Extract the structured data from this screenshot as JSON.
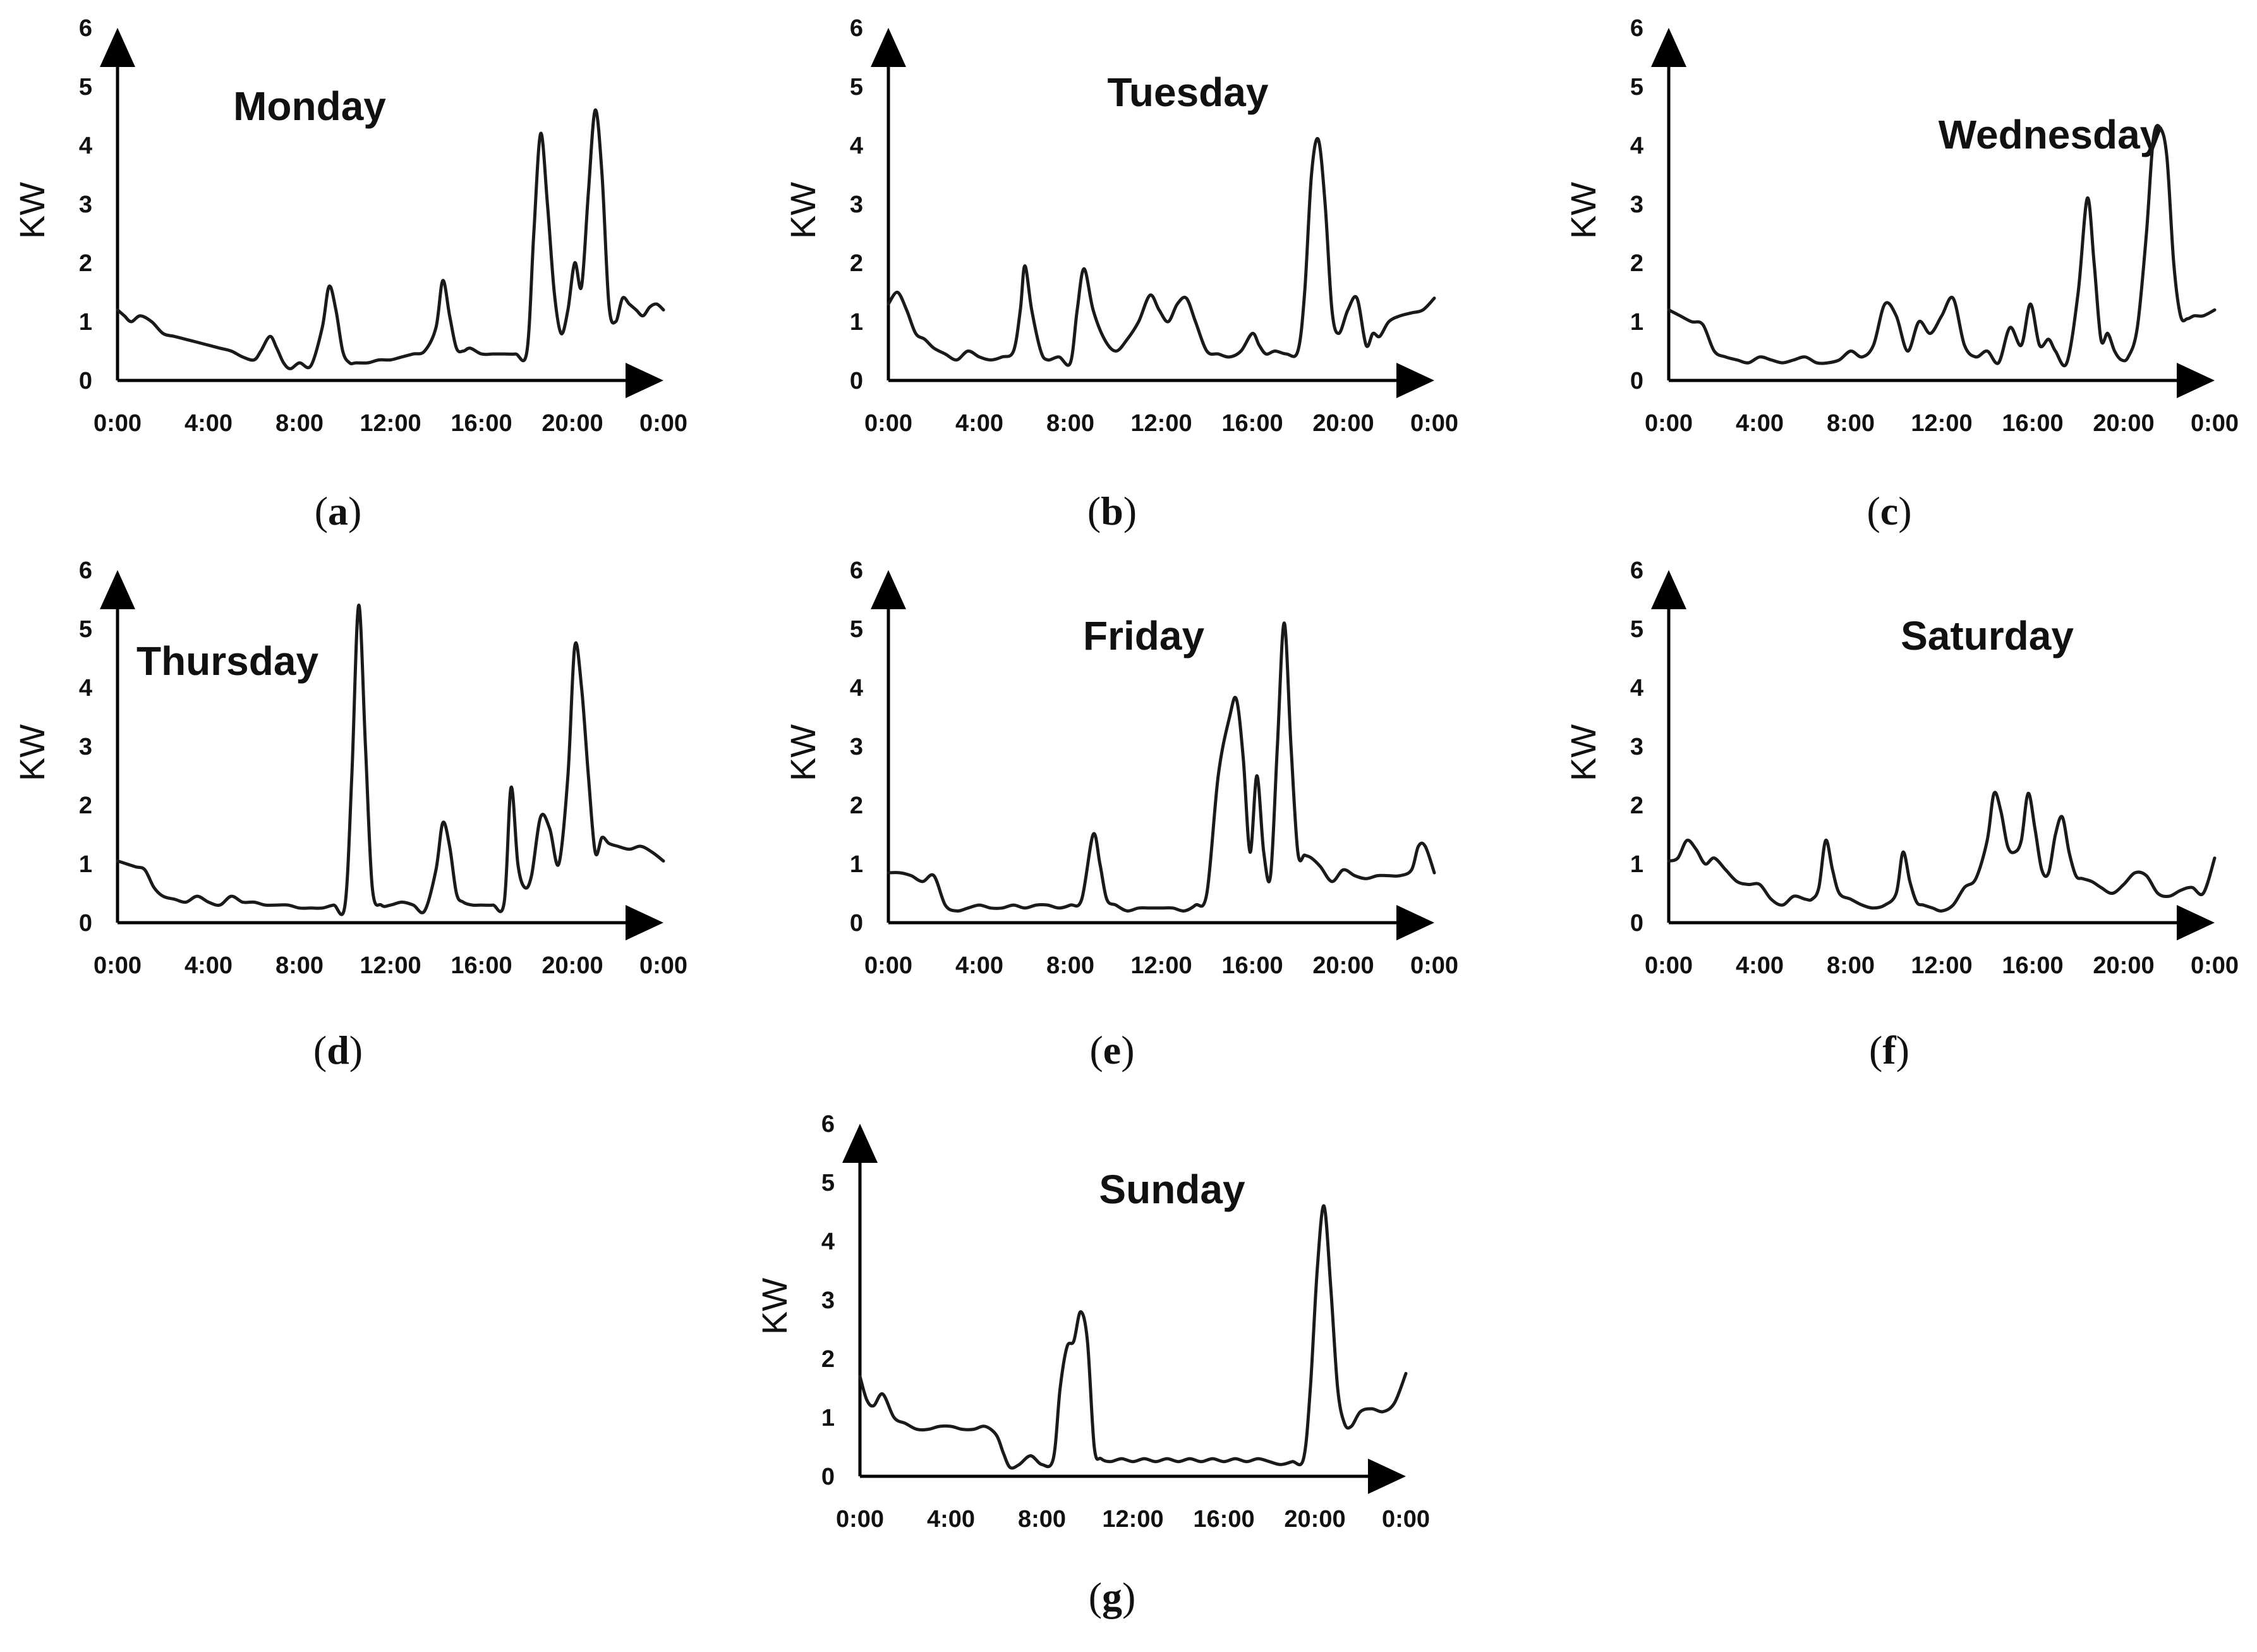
{
  "colors": {
    "line": "#1a1a1a",
    "axis": "#000000",
    "text": "#111111"
  },
  "chart_data": [
    {
      "type": "line",
      "caption": "a",
      "title": "Monday",
      "ylabel": "KW",
      "xlabel": "",
      "ylim": [
        0,
        6
      ],
      "xlim": [
        0,
        24
      ],
      "yticks": [
        "0",
        "1",
        "2",
        "3",
        "4",
        "5",
        "6"
      ],
      "xticks": [
        "0:00",
        "4:00",
        "8:00",
        "12:00",
        "16:00",
        "20:00",
        "0:00"
      ],
      "x": [
        0,
        0.3,
        0.6,
        1,
        1.5,
        2,
        2.5,
        3,
        3.5,
        4,
        4.5,
        5,
        5.5,
        6,
        6.3,
        6.7,
        7,
        7.3,
        7.6,
        8,
        8.5,
        9,
        9.3,
        9.6,
        9.9,
        10.2,
        10.5,
        11,
        11.5,
        12,
        12.5,
        13,
        13.5,
        14,
        14.3,
        14.6,
        14.9,
        15.2,
        15.5,
        16,
        16.5,
        17,
        17.5,
        18,
        18.3,
        18.6,
        18.9,
        19.2,
        19.5,
        19.8,
        20.1,
        20.4,
        20.7,
        21,
        21.3,
        21.6,
        21.9,
        22.2,
        22.5,
        22.8,
        23.1,
        23.4,
        23.7,
        24
      ],
      "y": [
        1.2,
        1.1,
        1.0,
        1.1,
        1.0,
        0.8,
        0.75,
        0.7,
        0.65,
        0.6,
        0.55,
        0.5,
        0.4,
        0.35,
        0.5,
        0.75,
        0.55,
        0.3,
        0.2,
        0.3,
        0.25,
        0.9,
        1.6,
        1.2,
        0.5,
        0.3,
        0.3,
        0.3,
        0.35,
        0.35,
        0.4,
        0.45,
        0.5,
        0.9,
        1.7,
        1.1,
        0.55,
        0.5,
        0.55,
        0.45,
        0.45,
        0.45,
        0.45,
        0.5,
        2.5,
        4.2,
        3.0,
        1.5,
        0.8,
        1.2,
        2.0,
        1.6,
        3.2,
        4.6,
        3.5,
        1.3,
        1.0,
        1.4,
        1.3,
        1.2,
        1.1,
        1.25,
        1.3,
        1.2
      ]
    },
    {
      "type": "line",
      "caption": "b",
      "title": "Tuesday",
      "ylabel": "KW",
      "xlabel": "",
      "ylim": [
        0,
        6
      ],
      "xlim": [
        0,
        24
      ],
      "yticks": [
        "0",
        "1",
        "2",
        "3",
        "4",
        "5",
        "6"
      ],
      "xticks": [
        "0:00",
        "4:00",
        "8:00",
        "12:00",
        "16:00",
        "20:00",
        "0:00"
      ],
      "x": [
        0,
        0.4,
        0.8,
        1.2,
        1.6,
        2,
        2.5,
        3,
        3.5,
        4,
        4.5,
        5,
        5.5,
        5.8,
        6,
        6.3,
        6.7,
        7,
        7.5,
        8,
        8.3,
        8.6,
        9,
        9.5,
        10,
        10.5,
        11,
        11.5,
        11.9,
        12.3,
        12.7,
        13.1,
        13.5,
        14,
        14.5,
        15,
        15.5,
        16,
        16.3,
        16.6,
        17,
        17.5,
        18,
        18.3,
        18.6,
        18.9,
        19.2,
        19.5,
        19.8,
        20.2,
        20.6,
        21,
        21.3,
        21.6,
        22,
        22.5,
        23,
        23.5,
        24
      ],
      "y": [
        1.3,
        1.5,
        1.2,
        0.8,
        0.7,
        0.55,
        0.45,
        0.35,
        0.5,
        0.4,
        0.35,
        0.4,
        0.5,
        1.2,
        1.95,
        1.2,
        0.5,
        0.35,
        0.4,
        0.3,
        1.2,
        1.9,
        1.2,
        0.7,
        0.5,
        0.7,
        1.0,
        1.45,
        1.2,
        1.0,
        1.3,
        1.4,
        1.0,
        0.5,
        0.45,
        0.4,
        0.5,
        0.8,
        0.6,
        0.45,
        0.5,
        0.45,
        0.5,
        1.5,
        3.5,
        4.1,
        3.0,
        1.2,
        0.8,
        1.2,
        1.4,
        0.6,
        0.8,
        0.75,
        1.0,
        1.1,
        1.15,
        1.2,
        1.4
      ]
    },
    {
      "type": "line",
      "caption": "c",
      "title": "Wednesday",
      "ylabel": "KW",
      "xlabel": "",
      "ylim": [
        0,
        6
      ],
      "xlim": [
        0,
        24
      ],
      "yticks": [
        "0",
        "1",
        "2",
        "3",
        "4",
        "5",
        "6"
      ],
      "xticks": [
        "0:00",
        "4:00",
        "8:00",
        "12:00",
        "16:00",
        "20:00",
        "0:00"
      ],
      "x": [
        0,
        0.5,
        1,
        1.5,
        2,
        2.5,
        3,
        3.5,
        4,
        4.5,
        5,
        5.5,
        6,
        6.5,
        7,
        7.5,
        8,
        8.5,
        9,
        9.5,
        10,
        10.5,
        11,
        11.5,
        12,
        12.5,
        13,
        13.5,
        14,
        14.5,
        15,
        15.5,
        15.9,
        16.3,
        16.7,
        17,
        17.5,
        18,
        18.4,
        18.7,
        19,
        19.3,
        19.6,
        19.9,
        20.2,
        20.6,
        21,
        21.3,
        21.6,
        21.9,
        22.2,
        22.5,
        22.8,
        23.1,
        23.5,
        24
      ],
      "y": [
        1.2,
        1.1,
        1.0,
        0.95,
        0.5,
        0.4,
        0.35,
        0.3,
        0.4,
        0.35,
        0.3,
        0.35,
        0.4,
        0.3,
        0.3,
        0.35,
        0.5,
        0.4,
        0.6,
        1.3,
        1.1,
        0.5,
        1.0,
        0.8,
        1.1,
        1.4,
        0.6,
        0.4,
        0.5,
        0.3,
        0.9,
        0.6,
        1.3,
        0.6,
        0.7,
        0.5,
        0.3,
        1.5,
        3.1,
        2.0,
        0.7,
        0.8,
        0.5,
        0.35,
        0.4,
        0.9,
        2.5,
        4.1,
        4.3,
        3.8,
        2.0,
        1.1,
        1.05,
        1.1,
        1.1,
        1.2
      ]
    },
    {
      "type": "line",
      "caption": "d",
      "title": "Thursday",
      "ylabel": "KW",
      "xlabel": "",
      "ylim": [
        0,
        6
      ],
      "xlim": [
        0,
        24
      ],
      "yticks": [
        "0",
        "1",
        "2",
        "3",
        "4",
        "5",
        "6"
      ],
      "xticks": [
        "0:00",
        "4:00",
        "8:00",
        "12:00",
        "16:00",
        "20:00",
        "0:00"
      ],
      "x": [
        0,
        0.4,
        0.8,
        1.2,
        1.6,
        2,
        2.5,
        3,
        3.5,
        4,
        4.5,
        5,
        5.5,
        6,
        6.5,
        7,
        7.5,
        8,
        8.5,
        9,
        9.5,
        10,
        10.3,
        10.6,
        10.9,
        11.2,
        11.6,
        12,
        12.5,
        13,
        13.5,
        14,
        14.3,
        14.6,
        14.9,
        15.2,
        15.6,
        16,
        16.5,
        17,
        17.3,
        17.6,
        17.9,
        18.2,
        18.6,
        19,
        19.4,
        19.8,
        20.1,
        20.4,
        20.7,
        21,
        21.3,
        21.6,
        22,
        22.5,
        23,
        23.5,
        24
      ],
      "y": [
        1.05,
        1.0,
        0.95,
        0.9,
        0.6,
        0.45,
        0.4,
        0.35,
        0.45,
        0.35,
        0.3,
        0.45,
        0.35,
        0.35,
        0.3,
        0.3,
        0.3,
        0.25,
        0.25,
        0.25,
        0.3,
        0.3,
        2.5,
        5.4,
        3.0,
        0.6,
        0.3,
        0.3,
        0.35,
        0.3,
        0.2,
        0.9,
        1.7,
        1.3,
        0.5,
        0.35,
        0.3,
        0.3,
        0.3,
        0.35,
        2.3,
        1.0,
        0.6,
        0.8,
        1.8,
        1.6,
        1.0,
        2.5,
        4.7,
        4.0,
        2.5,
        1.2,
        1.45,
        1.35,
        1.3,
        1.25,
        1.3,
        1.2,
        1.05
      ]
    },
    {
      "type": "line",
      "caption": "e",
      "title": "Friday",
      "ylabel": "KW",
      "xlabel": "",
      "ylim": [
        0,
        6
      ],
      "xlim": [
        0,
        24
      ],
      "yticks": [
        "0",
        "1",
        "2",
        "3",
        "4",
        "5",
        "6"
      ],
      "xticks": [
        "0:00",
        "4:00",
        "8:00",
        "12:00",
        "16:00",
        "20:00",
        "0:00"
      ],
      "x": [
        0,
        0.5,
        1,
        1.5,
        2,
        2.5,
        3,
        3.5,
        4,
        4.5,
        5,
        5.5,
        6,
        6.5,
        7,
        7.5,
        8,
        8.5,
        9,
        9.3,
        9.6,
        10,
        10.5,
        11,
        11.5,
        12,
        12.5,
        13,
        13.5,
        14,
        14.5,
        15,
        15.3,
        15.6,
        15.9,
        16.2,
        16.5,
        16.8,
        17.1,
        17.4,
        17.7,
        18,
        18.3,
        18.6,
        19,
        19.5,
        20,
        20.5,
        21,
        21.5,
        22,
        22.5,
        23,
        23.3,
        23.6,
        24
      ],
      "y": [
        0.85,
        0.85,
        0.8,
        0.7,
        0.8,
        0.3,
        0.2,
        0.25,
        0.3,
        0.25,
        0.25,
        0.3,
        0.25,
        0.3,
        0.3,
        0.25,
        0.3,
        0.4,
        1.5,
        1.0,
        0.4,
        0.3,
        0.2,
        0.25,
        0.25,
        0.25,
        0.25,
        0.2,
        0.3,
        0.5,
        2.5,
        3.5,
        3.8,
        2.8,
        1.2,
        2.5,
        1.2,
        0.8,
        3.0,
        5.1,
        3.0,
        1.2,
        1.15,
        1.1,
        0.95,
        0.7,
        0.9,
        0.8,
        0.75,
        0.8,
        0.8,
        0.8,
        0.9,
        1.3,
        1.3,
        0.85
      ]
    },
    {
      "type": "line",
      "caption": "f",
      "title": "Saturday",
      "ylabel": "KW",
      "xlabel": "",
      "ylim": [
        0,
        6
      ],
      "xlim": [
        0,
        24
      ],
      "yticks": [
        "0",
        "1",
        "2",
        "3",
        "4",
        "5",
        "6"
      ],
      "xticks": [
        "0:00",
        "4:00",
        "8:00",
        "12:00",
        "16:00",
        "20:00",
        "0:00"
      ],
      "x": [
        0,
        0.4,
        0.8,
        1.2,
        1.6,
        2,
        2.5,
        3,
        3.5,
        4,
        4.5,
        5,
        5.5,
        6,
        6.3,
        6.6,
        6.9,
        7.2,
        7.5,
        8,
        8.5,
        9,
        9.5,
        10,
        10.3,
        10.6,
        10.9,
        11.2,
        11.6,
        12,
        12.5,
        13,
        13.5,
        14,
        14.3,
        14.6,
        14.9,
        15.2,
        15.5,
        15.8,
        16.1,
        16.4,
        16.7,
        17,
        17.3,
        17.6,
        17.9,
        18.2,
        18.6,
        19,
        19.5,
        20,
        20.5,
        21,
        21.5,
        22,
        22.5,
        23,
        23.5,
        24
      ],
      "y": [
        1.05,
        1.1,
        1.4,
        1.25,
        1.0,
        1.1,
        0.9,
        0.7,
        0.65,
        0.65,
        0.4,
        0.3,
        0.45,
        0.4,
        0.4,
        0.6,
        1.4,
        0.9,
        0.5,
        0.4,
        0.3,
        0.25,
        0.3,
        0.5,
        1.2,
        0.7,
        0.35,
        0.3,
        0.25,
        0.2,
        0.3,
        0.6,
        0.75,
        1.4,
        2.2,
        1.9,
        1.3,
        1.2,
        1.4,
        2.2,
        1.6,
        0.9,
        0.85,
        1.5,
        1.8,
        1.2,
        0.8,
        0.75,
        0.7,
        0.6,
        0.5,
        0.65,
        0.85,
        0.8,
        0.5,
        0.45,
        0.55,
        0.6,
        0.5,
        1.1
      ]
    },
    {
      "type": "line",
      "caption": "g",
      "title": "Sunday",
      "ylabel": "KW",
      "xlabel": "",
      "ylim": [
        0,
        6
      ],
      "xlim": [
        0,
        24
      ],
      "yticks": [
        "0",
        "1",
        "2",
        "3",
        "4",
        "5",
        "6"
      ],
      "xticks": [
        "0:00",
        "4:00",
        "8:00",
        "12:00",
        "16:00",
        "20:00",
        "0:00"
      ],
      "x": [
        0,
        0.3,
        0.6,
        1,
        1.5,
        2,
        2.5,
        3,
        3.5,
        4,
        4.5,
        5,
        5.5,
        6,
        6.3,
        6.6,
        7,
        7.5,
        8,
        8.5,
        8.8,
        9.1,
        9.4,
        9.7,
        10,
        10.3,
        10.6,
        11,
        11.5,
        12,
        12.5,
        13,
        13.5,
        14,
        14.5,
        15,
        15.5,
        16,
        16.5,
        17,
        17.5,
        18,
        18.5,
        19,
        19.5,
        19.8,
        20.1,
        20.4,
        20.7,
        21,
        21.3,
        21.6,
        22,
        22.5,
        23,
        23.5,
        24
      ],
      "y": [
        1.7,
        1.3,
        1.2,
        1.4,
        1.0,
        0.9,
        0.8,
        0.8,
        0.85,
        0.85,
        0.8,
        0.8,
        0.85,
        0.7,
        0.4,
        0.15,
        0.2,
        0.35,
        0.2,
        0.3,
        1.5,
        2.2,
        2.3,
        2.8,
        2.3,
        0.5,
        0.3,
        0.25,
        0.3,
        0.25,
        0.3,
        0.25,
        0.3,
        0.25,
        0.3,
        0.25,
        0.3,
        0.25,
        0.3,
        0.25,
        0.3,
        0.25,
        0.2,
        0.25,
        0.3,
        1.5,
        3.5,
        4.6,
        3.2,
        1.5,
        0.9,
        0.85,
        1.1,
        1.15,
        1.1,
        1.25,
        1.75
      ]
    }
  ]
}
